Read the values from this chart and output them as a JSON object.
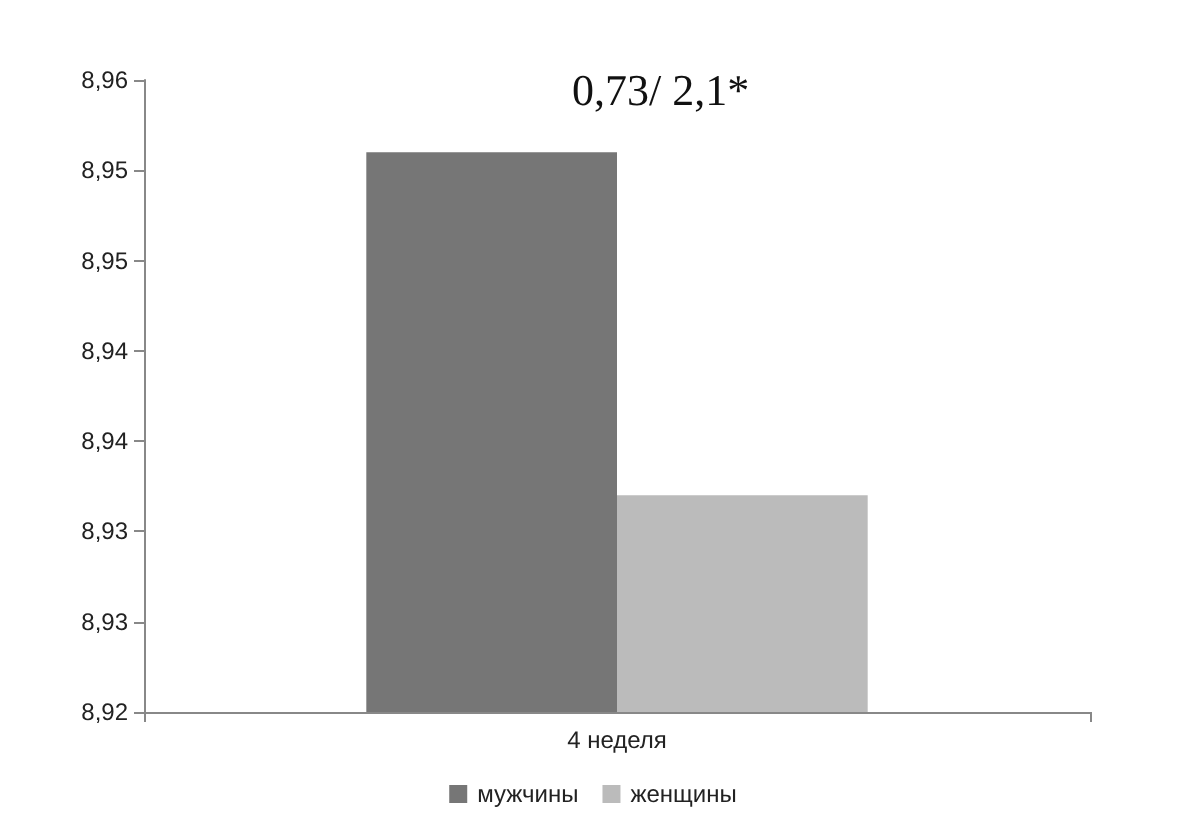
{
  "chart_data": {
    "type": "bar",
    "categories": [
      "4 неделя"
    ],
    "series": [
      {
        "name": "мужчины",
        "color": "#767676",
        "values": [
          8.955
        ]
      },
      {
        "name": "женщины",
        "color": "#bbbbbb",
        "values": [
          8.936
        ]
      }
    ],
    "ylim": [
      8.924,
      8.959
    ],
    "yticks": [
      {
        "value": 8.924,
        "label": "8,92"
      },
      {
        "value": 8.929,
        "label": "8,93"
      },
      {
        "value": 8.934,
        "label": "8,93"
      },
      {
        "value": 8.939,
        "label": "8,94"
      },
      {
        "value": 8.944,
        "label": "8,94"
      },
      {
        "value": 8.949,
        "label": "8,95"
      },
      {
        "value": 8.954,
        "label": "8,95"
      },
      {
        "value": 8.959,
        "label": "8,96"
      }
    ],
    "annotations": [
      "0,73/ 2,1*"
    ],
    "legend": "bottom",
    "grid": false
  }
}
